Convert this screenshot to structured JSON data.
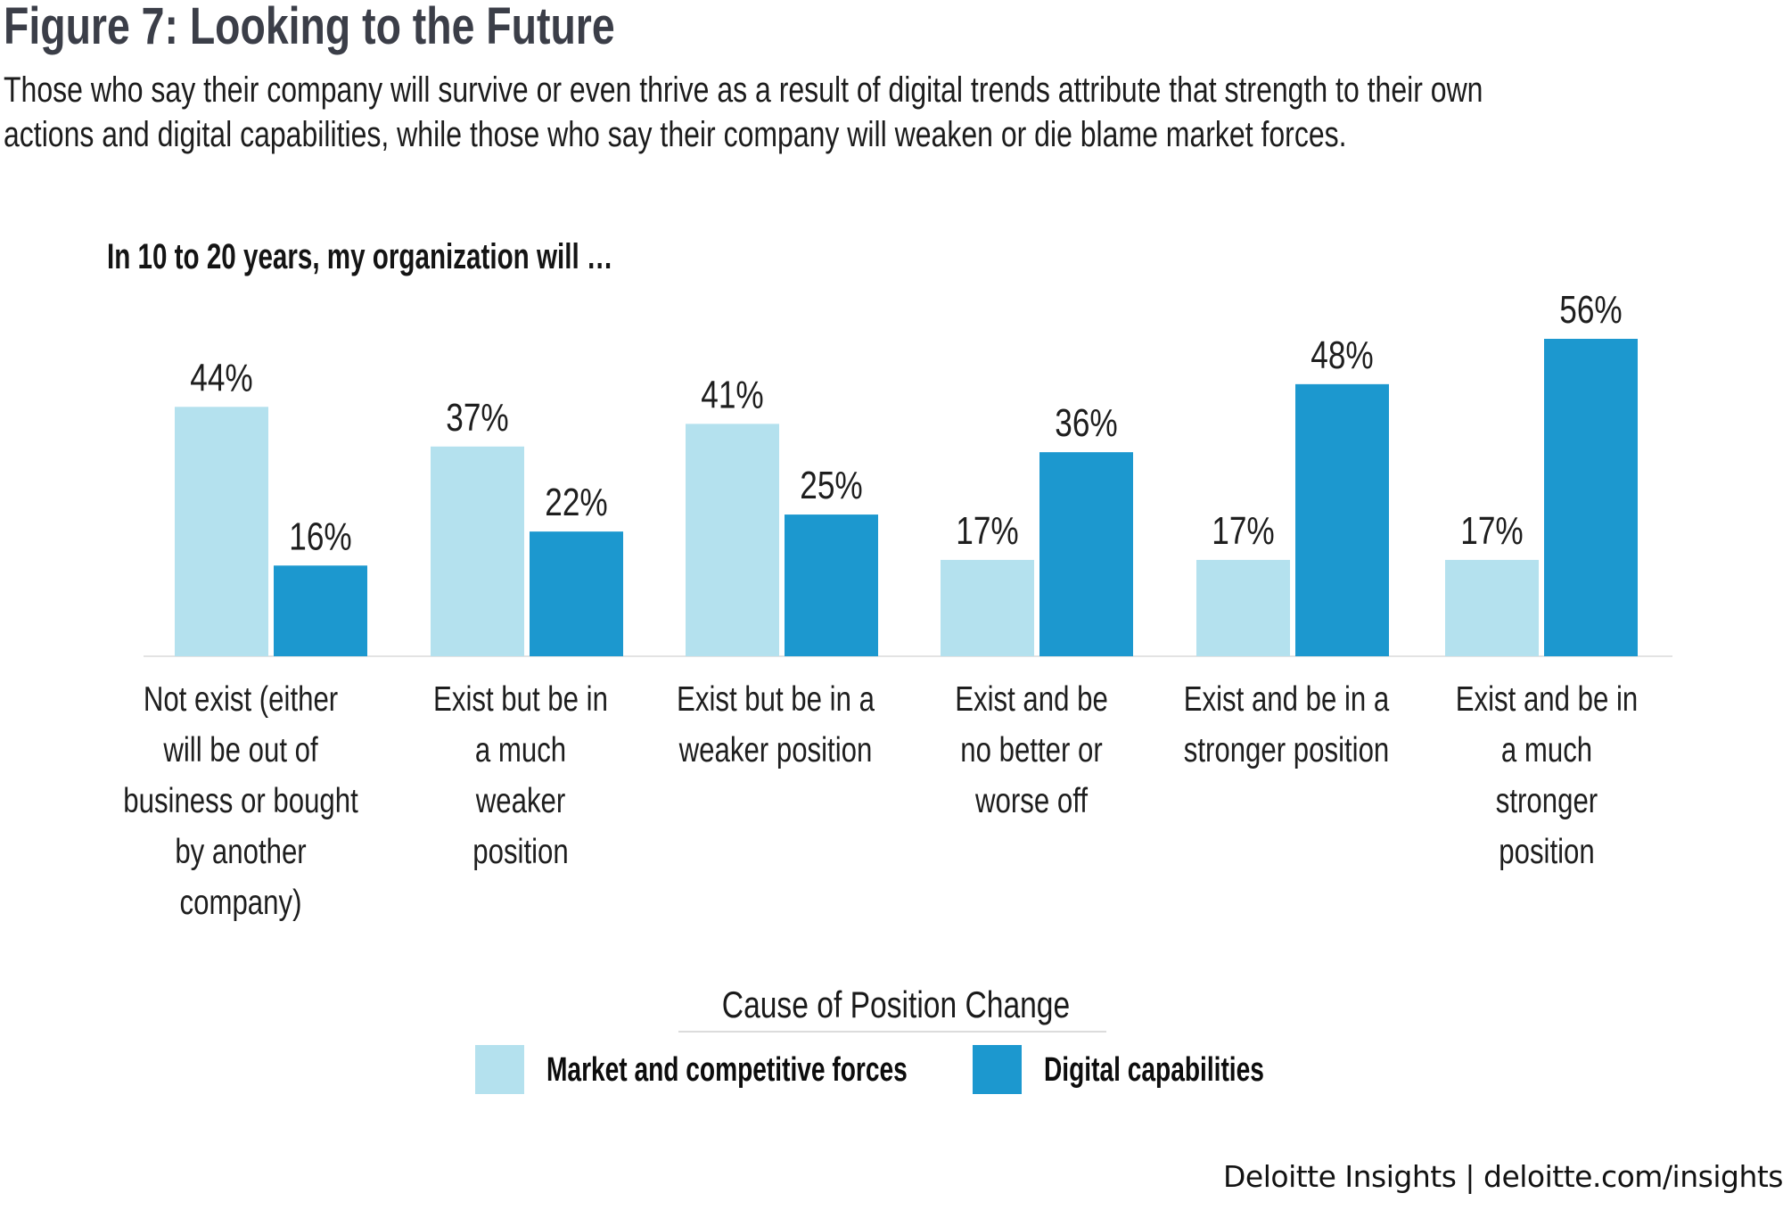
{
  "figure": {
    "title": "Figure 7: Looking to the Future",
    "description_lines": [
      "Those who say their company will survive or even thrive as a result of digital trends attribute that strength to their own",
      "actions and digital capabilities, while those who say their company will weaken or die blame market forces."
    ]
  },
  "chart_data": {
    "type": "bar",
    "title": "In 10 to 20 years, my organization will …",
    "xlabel": "",
    "ylabel": "",
    "ylim": [
      0,
      60
    ],
    "grid": false,
    "categories": [
      "Not exist (either will be out of business or bought by another company)",
      "Exist but be in a much weaker position",
      "Exist but be in a weaker position",
      "Exist and be no better or worse off",
      "Exist and be in a stronger position",
      "Exist and be in a much stronger position"
    ],
    "category_lines": [
      [
        "Not exist (either",
        "will be out of",
        "business or bought",
        "by another",
        "company)"
      ],
      [
        "Exist but be in",
        "a much",
        "weaker",
        "position"
      ],
      [
        "Exist but be in a",
        "weaker position"
      ],
      [
        "Exist and be",
        "no better or",
        "worse off"
      ],
      [
        "Exist and be in a",
        "stronger position"
      ],
      [
        "Exist and be in",
        "a much",
        "stronger",
        "position"
      ]
    ],
    "series": [
      {
        "name": "Market and competitive forces",
        "color": "#b4e1ee",
        "values": [
          44,
          37,
          41,
          17,
          17,
          17
        ]
      },
      {
        "name": "Digital capabilities",
        "color": "#1c98cf",
        "values": [
          16,
          22,
          25,
          36,
          48,
          56
        ]
      }
    ],
    "value_suffix": "%",
    "legend": {
      "title": "Cause of Position Change",
      "placement": "bottom-center"
    }
  },
  "footer": {
    "text": "Deloitte Insights | deloitte.com/insights"
  }
}
